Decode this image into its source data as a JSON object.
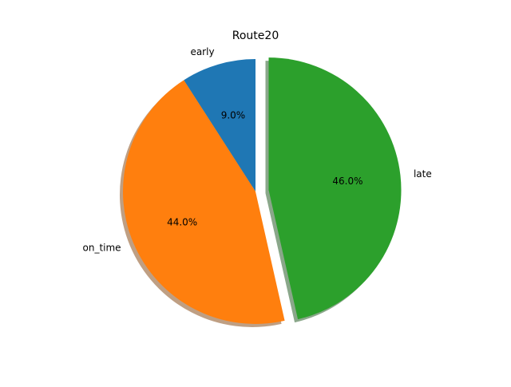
{
  "chart_data": {
    "type": "pie",
    "title": "Route20",
    "categories": [
      "early",
      "on_time",
      "late"
    ],
    "values": [
      9.0,
      44.0,
      46.0
    ],
    "percent_labels": [
      "9.0%",
      "44.0%",
      "46.0%"
    ],
    "colors": [
      "#1f77b4",
      "#ff7f0e",
      "#2ca02c"
    ],
    "exploded": [
      false,
      false,
      true
    ],
    "shadow": true,
    "start_angle_deg": 90,
    "direction": "counterclockwise",
    "legend": "none"
  }
}
